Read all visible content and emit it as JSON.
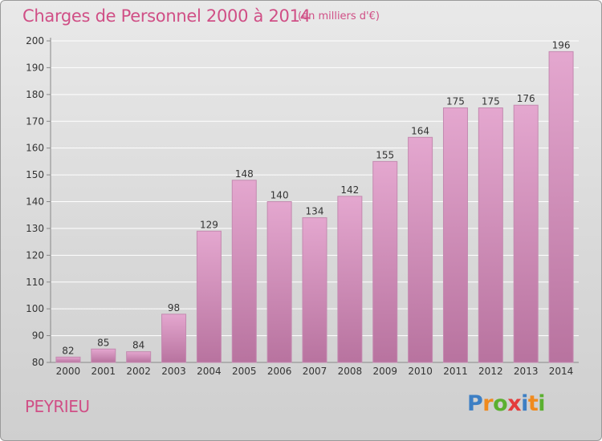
{
  "header": {
    "title": "Charges de Personnel 2000 à 2014",
    "subtitle": "(en milliers d'€)"
  },
  "footer": {
    "commune": "PEYRIEU",
    "logo_letters": [
      "P",
      "r",
      "o",
      "x",
      "i",
      "t",
      "i"
    ],
    "logo_colors": [
      "#3d7fc4",
      "#f08a1e",
      "#5bb030",
      "#e43b3b",
      "#3d7fc4",
      "#f08a1e",
      "#5bb030"
    ]
  },
  "colors": {
    "bar_top": "#e4a7cf",
    "bar_bottom": "#b8739f",
    "bar_stroke": "#c48ab0",
    "title": "#d04f86",
    "grid": "#ffffff",
    "text": "#333333"
  },
  "chart_data": {
    "type": "bar",
    "categories": [
      "2000",
      "2001",
      "2002",
      "2003",
      "2004",
      "2005",
      "2006",
      "2007",
      "2008",
      "2009",
      "2010",
      "2011",
      "2012",
      "2013",
      "2014"
    ],
    "values": [
      82,
      85,
      84,
      98,
      129,
      148,
      140,
      134,
      142,
      155,
      164,
      175,
      175,
      176,
      196
    ],
    "ylim": [
      80,
      200
    ],
    "yticks": [
      80,
      90,
      100,
      110,
      120,
      130,
      140,
      150,
      160,
      170,
      180,
      190,
      200
    ],
    "grid": true,
    "title": "Charges de Personnel 2000 à 2014",
    "xlabel": "",
    "ylabel": ""
  }
}
